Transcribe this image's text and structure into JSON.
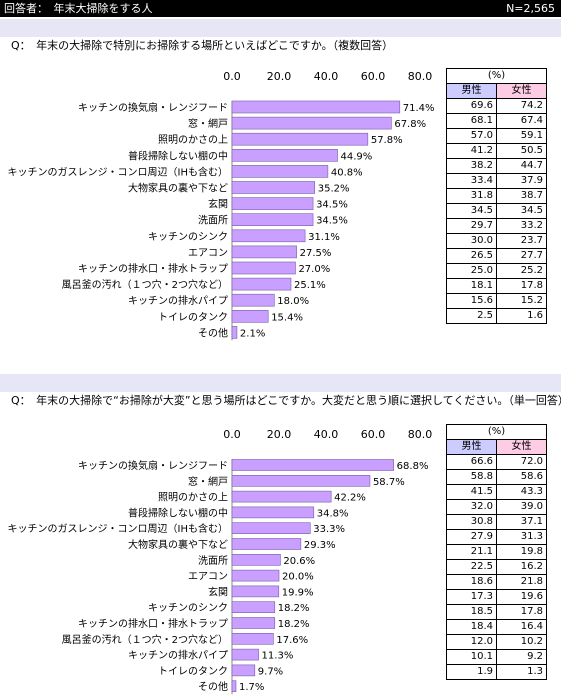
{
  "header": {
    "respondent": "回答者：　年末大掃除をする人",
    "n": "N=2,565"
  },
  "questions": [
    "Q：　年末の大掃除で特別にお掃除する場所といえばどこですか。（複数回答）",
    "Q：　年末の大掃除で“お掃除が大変”と思う場所はどこですか。大変だと思う順に選択してください。（単一回答）"
  ],
  "table_header": {
    "unit": "(%)",
    "male": "男性",
    "female": "女性"
  },
  "colors": {
    "bar": "#c9a0ff",
    "male_header": "#ccccff",
    "female_header": "#ffcce6",
    "question_bg": "#e6e6f6"
  },
  "chart_data": [
    {
      "type": "bar",
      "orientation": "horizontal",
      "title": "",
      "xlim": [
        0,
        80
      ],
      "ticks": [
        "0.0",
        "20.0",
        "40.0",
        "60.0",
        "80.0"
      ],
      "categories": [
        "キッチンの換気扇・レンジフード",
        "窓・網戸",
        "照明のかさの上",
        "普段掃除しない棚の中",
        "キッチンのガスレンジ・コンロ周辺（IHも含む）",
        "大物家具の裏や下など",
        "玄関",
        "洗面所",
        "キッチンのシンク",
        "エアコン",
        "キッチンの排水口・排水トラップ",
        "風呂釜の汚れ（１つ穴・2つ穴など）",
        "キッチンの排水パイプ",
        "トイレのタンク",
        "その他"
      ],
      "values": [
        71.4,
        67.8,
        57.8,
        44.9,
        40.8,
        35.2,
        34.5,
        34.5,
        31.1,
        27.5,
        27.0,
        25.1,
        18.0,
        15.4,
        2.1
      ],
      "value_labels": [
        "71.4%",
        "67.8%",
        "57.8%",
        "44.9%",
        "40.8%",
        "35.2%",
        "34.5%",
        "34.5%",
        "31.1%",
        "27.5%",
        "27.0%",
        "25.1%",
        "18.0%",
        "15.4%",
        "2.1%"
      ],
      "male": [
        "69.6",
        "68.1",
        "57.0",
        "41.2",
        "38.2",
        "33.4",
        "31.8",
        "34.5",
        "29.7",
        "30.0",
        "26.5",
        "25.0",
        "18.1",
        "15.6",
        "2.5"
      ],
      "female": [
        "74.2",
        "67.4",
        "59.1",
        "50.5",
        "44.7",
        "37.9",
        "38.7",
        "34.5",
        "33.2",
        "23.7",
        "27.7",
        "25.2",
        "17.8",
        "15.2",
        "1.6"
      ]
    },
    {
      "type": "bar",
      "orientation": "horizontal",
      "title": "",
      "xlim": [
        0,
        80
      ],
      "ticks": [
        "0.0",
        "20.0",
        "40.0",
        "60.0",
        "80.0"
      ],
      "categories": [
        "キッチンの換気扇・レンジフード",
        "窓・網戸",
        "照明のかさの上",
        "普段掃除しない棚の中",
        "キッチンのガスレンジ・コンロ周辺（IHも含む）",
        "大物家具の裏や下など",
        "洗面所",
        "エアコン",
        "玄関",
        "キッチンのシンク",
        "キッチンの排水口・排水トラップ",
        "風呂釜の汚れ（１つ穴・2つ穴など）",
        "キッチンの排水パイプ",
        "トイレのタンク",
        "その他"
      ],
      "values": [
        68.8,
        58.7,
        42.2,
        34.8,
        33.3,
        29.3,
        20.6,
        20.0,
        19.9,
        18.2,
        18.2,
        17.6,
        11.3,
        9.7,
        1.7
      ],
      "value_labels": [
        "68.8%",
        "58.7%",
        "42.2%",
        "34.8%",
        "33.3%",
        "29.3%",
        "20.6%",
        "20.0%",
        "19.9%",
        "18.2%",
        "18.2%",
        "17.6%",
        "11.3%",
        "9.7%",
        "1.7%"
      ],
      "male": [
        "66.6",
        "58.8",
        "41.5",
        "32.0",
        "30.8",
        "27.9",
        "21.1",
        "22.5",
        "18.6",
        "17.3",
        "18.5",
        "18.4",
        "12.0",
        "10.1",
        "1.9"
      ],
      "female": [
        "72.0",
        "58.6",
        "43.3",
        "39.0",
        "37.1",
        "31.3",
        "19.8",
        "16.2",
        "21.8",
        "19.6",
        "17.8",
        "16.4",
        "10.2",
        "9.2",
        "1.3"
      ]
    }
  ]
}
